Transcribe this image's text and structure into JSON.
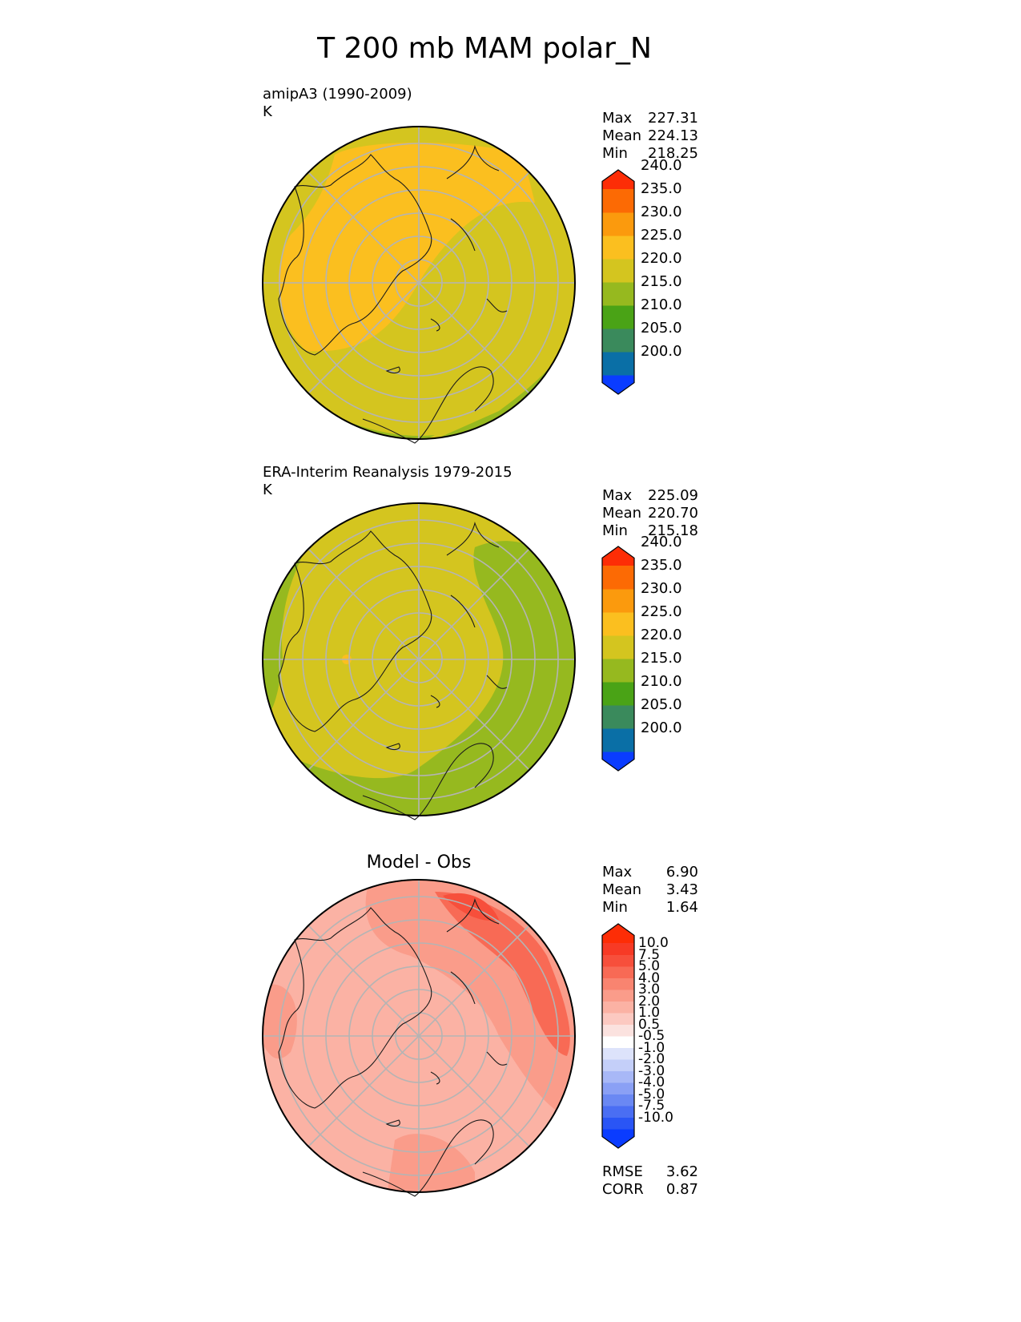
{
  "figure": {
    "title": "T 200 mb MAM polar_N"
  },
  "panels": [
    {
      "id": "model",
      "label_line1": "amipA3 (1990-2009)",
      "label_line2": "K",
      "subtitle": "",
      "stats": [
        {
          "key": "Max",
          "value": "227.31"
        },
        {
          "key": "Mean",
          "value": "224.13"
        },
        {
          "key": "Min",
          "value": "218.25"
        }
      ],
      "colorbar": {
        "colors": [
          "#0a3cff",
          "#0a6fa6",
          "#3a8a5c",
          "#4aa316",
          "#96b91f",
          "#d4c51f",
          "#fbbf1f",
          "#fb9a0d",
          "#fc6a04",
          "#fd2d06"
        ],
        "ticks": [
          "200.0",
          "205.0",
          "210.0",
          "215.0",
          "220.0",
          "225.0",
          "230.0",
          "235.0",
          "240.0"
        ]
      }
    },
    {
      "id": "obs",
      "label_line1": "ERA-Interim Reanalysis 1979-2015",
      "label_line2": "K",
      "subtitle": "",
      "stats": [
        {
          "key": "Max",
          "value": "225.09"
        },
        {
          "key": "Mean",
          "value": "220.70"
        },
        {
          "key": "Min",
          "value": "215.18"
        }
      ],
      "colorbar": {
        "colors": [
          "#0a3cff",
          "#0a6fa6",
          "#3a8a5c",
          "#4aa316",
          "#96b91f",
          "#d4c51f",
          "#fbbf1f",
          "#fb9a0d",
          "#fc6a04",
          "#fd2d06"
        ],
        "ticks": [
          "200.0",
          "205.0",
          "210.0",
          "215.0",
          "220.0",
          "225.0",
          "230.0",
          "235.0",
          "240.0"
        ]
      }
    },
    {
      "id": "diff",
      "label_line1": "",
      "label_line2": "",
      "subtitle": "Model - Obs",
      "stats": [
        {
          "key": "Max",
          "value": "6.90"
        },
        {
          "key": "Mean",
          "value": "3.43"
        },
        {
          "key": "Min",
          "value": "1.64"
        }
      ],
      "metrics": [
        {
          "key": "RMSE",
          "value": "3.62"
        },
        {
          "key": "CORR",
          "value": "0.87"
        }
      ],
      "colorbar": {
        "colors": [
          "#0a3cff",
          "#2a55f5",
          "#4a6ef3",
          "#6a88f3",
          "#8aa0f5",
          "#a8b8f7",
          "#c4cff9",
          "#dde3fb",
          "#ffffff",
          "#fbe2df",
          "#fcc9c1",
          "#fbb2a4",
          "#fa9c8a",
          "#f98470",
          "#f86a55",
          "#f74f3b",
          "#f73a25",
          "#fd2d06"
        ],
        "ticks": [
          "-10.0",
          "-7.5",
          "-5.0",
          "-4.0",
          "-3.0",
          "-2.0",
          "-1.0",
          "-0.5",
          "0.5",
          "1.0",
          "2.0",
          "3.0",
          "4.0",
          "5.0",
          "7.5",
          "10.0"
        ]
      }
    }
  ]
}
